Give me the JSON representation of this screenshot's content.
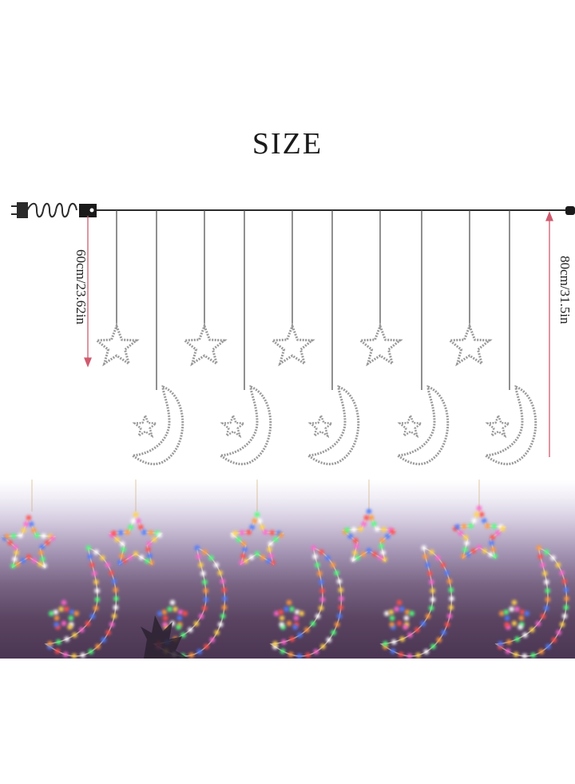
{
  "title": "SIZE",
  "dimensions": {
    "left_label": "60cm/23.62in",
    "right_label": "80cm/31.5in"
  },
  "colors": {
    "line": "#2b2b2b",
    "dimension_line": "#d05a6e",
    "outline": "#9a9a9a",
    "led_colors": [
      "#ff4d4d",
      "#ffd24d",
      "#4dff7a",
      "#4d7aff",
      "#ff66cc",
      "#ffffff",
      "#ff9a3c"
    ]
  },
  "photo": {
    "description_icon": "lit-led-curtain-photo"
  }
}
